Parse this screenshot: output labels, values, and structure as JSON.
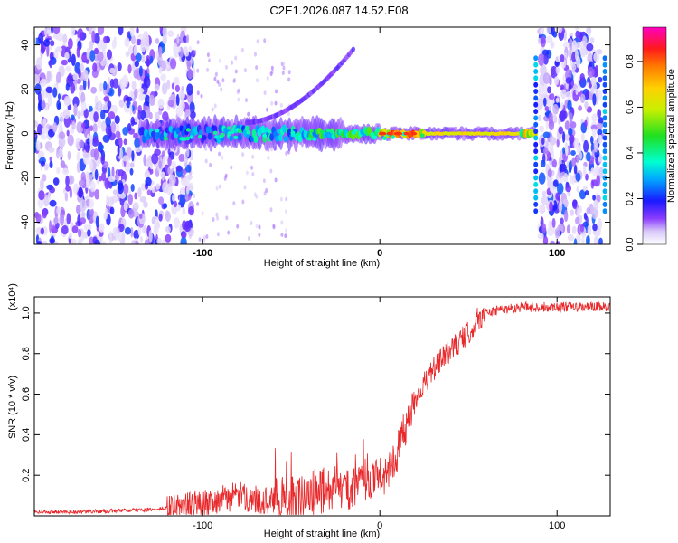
{
  "title": "C2E1.2026.087.14.52.E08",
  "chart_data": [
    {
      "type": "heatmap",
      "title": "C2E1.2026.087.14.52.E08",
      "xlabel": "Height of straight line (km)",
      "ylabel": "Frequency (Hz)",
      "xlim": [
        -195,
        130
      ],
      "ylim": [
        -50,
        48
      ],
      "xticks": [
        -100,
        0,
        100
      ],
      "yticks": [
        -40,
        -20,
        0,
        20,
        40
      ],
      "colorbar": {
        "label": "Normalized spectral amplitude",
        "range": [
          0,
          0.95
        ],
        "ticks": [
          "0.0",
          "0.2",
          "0.4",
          "0.6",
          "0.8"
        ]
      },
      "features": [
        {
          "name": "noise-left",
          "x_range": [
            -195,
            -105
          ],
          "y_range": [
            -50,
            48
          ],
          "level": 0.15
        },
        {
          "name": "main-band",
          "x_range": [
            -135,
            88
          ],
          "center_hz": 0,
          "peak_level": 0.9
        },
        {
          "name": "upward-chirp",
          "x_range": [
            -75,
            -15
          ],
          "hz_range": [
            5,
            38
          ],
          "level": 0.12
        },
        {
          "name": "noise-right",
          "x_range": [
            90,
            125
          ],
          "y_range": [
            -50,
            48
          ],
          "level": 0.15
        }
      ]
    },
    {
      "type": "line",
      "xlabel": "Height of straight line (km)",
      "ylabel": "SNR (10 * v/v)",
      "yunit": "(x10⁴)",
      "xlim": [
        -195,
        130
      ],
      "ylim": [
        0,
        1.08
      ],
      "xticks": [
        -100,
        0,
        100
      ],
      "yticks": [
        0.2,
        0.4,
        0.6,
        0.8,
        1.0
      ],
      "series": [
        {
          "name": "SNR",
          "color": "#e8282a",
          "x": [
            -195,
            -170,
            -150,
            -130,
            -115,
            -100,
            -90,
            -80,
            -70,
            -60,
            -50,
            -40,
            -30,
            -20,
            -10,
            0,
            5,
            10,
            15,
            20,
            30,
            40,
            50,
            55,
            60,
            70,
            80,
            100,
            130
          ],
          "y": [
            0.02,
            0.02,
            0.025,
            0.03,
            0.04,
            0.06,
            0.08,
            0.1,
            0.08,
            0.07,
            0.08,
            0.1,
            0.13,
            0.12,
            0.15,
            0.19,
            0.22,
            0.32,
            0.45,
            0.58,
            0.72,
            0.82,
            0.9,
            0.97,
            1.0,
            1.02,
            1.03,
            1.03,
            1.03
          ]
        }
      ]
    }
  ]
}
